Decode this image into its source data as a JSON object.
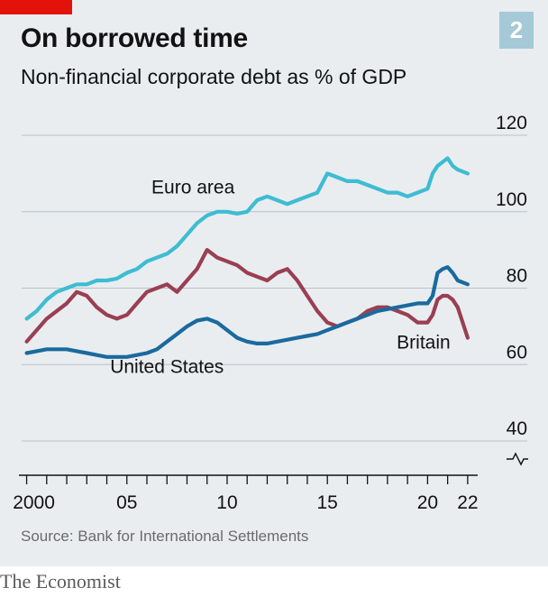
{
  "header": {
    "chart_number": "2",
    "title": "On borrowed time",
    "subtitle": "Non-financial corporate debt as % of GDP"
  },
  "footer": {
    "source": "Source: Bank for International Settlements",
    "brand": "The Economist"
  },
  "colors": {
    "panel": "#e9edf0",
    "euro_area": "#3ebcd2",
    "britain": "#9a3f52",
    "united_states": "#1a6a9e",
    "grid": "#b7c2c9",
    "accent_red": "#e3120b"
  },
  "chart_data": {
    "type": "line",
    "title": "On borrowed time",
    "subtitle": "Non-financial corporate debt as % of GDP",
    "xlabel": "",
    "ylabel": "",
    "xlim": [
      1999.75,
      2022.5
    ],
    "ylim": [
      40,
      120
    ],
    "y_ticks": [
      40,
      60,
      80,
      100,
      120
    ],
    "y_tick_labels": [
      "40",
      "60",
      "80",
      "100",
      "120"
    ],
    "y_axis_break": true,
    "x_ticks": [
      2000,
      2005,
      2010,
      2015,
      2020,
      2022
    ],
    "x_tick_labels": [
      "2000",
      "05",
      "10",
      "15",
      "20",
      "22"
    ],
    "x_minor_ticks": [
      2000,
      2001,
      2002,
      2003,
      2004,
      2005,
      2006,
      2007,
      2008,
      2009,
      2010,
      2011,
      2012,
      2013,
      2014,
      2015,
      2016,
      2017,
      2018,
      2019,
      2020,
      2021,
      2022
    ],
    "grid": true,
    "legend": "direct labels",
    "series": [
      {
        "name": "Euro area",
        "x": [
          2000.0,
          2000.5,
          2001.0,
          2001.5,
          2002.0,
          2002.5,
          2003.0,
          2003.5,
          2004.0,
          2004.5,
          2005.0,
          2005.5,
          2006.0,
          2006.5,
          2007.0,
          2007.5,
          2008.0,
          2008.5,
          2009.0,
          2009.5,
          2010.0,
          2010.5,
          2011.0,
          2011.5,
          2012.0,
          2012.5,
          2013.0,
          2013.5,
          2014.0,
          2014.5,
          2015.0,
          2015.5,
          2016.0,
          2016.5,
          2017.0,
          2017.5,
          2018.0,
          2018.5,
          2019.0,
          2019.5,
          2020.0,
          2020.25,
          2020.5,
          2020.75,
          2021.0,
          2021.25,
          2021.5,
          2022.0
        ],
        "values": [
          72,
          74,
          77,
          79,
          80,
          81,
          81,
          82,
          82,
          82.5,
          84,
          85,
          87,
          88,
          89,
          91,
          94,
          97,
          99,
          100,
          100,
          99.5,
          100,
          103,
          104,
          103,
          102,
          103,
          104,
          105,
          110,
          109,
          108,
          108,
          107,
          106,
          105,
          105,
          104,
          105,
          106,
          110,
          112,
          113,
          114,
          112,
          111,
          110
        ]
      },
      {
        "name": "Britain",
        "x": [
          2000.0,
          2000.5,
          2001.0,
          2001.5,
          2002.0,
          2002.5,
          2003.0,
          2003.5,
          2004.0,
          2004.5,
          2005.0,
          2005.5,
          2006.0,
          2006.5,
          2007.0,
          2007.5,
          2008.0,
          2008.5,
          2009.0,
          2009.5,
          2010.0,
          2010.5,
          2011.0,
          2011.5,
          2012.0,
          2012.5,
          2013.0,
          2013.5,
          2014.0,
          2014.5,
          2015.0,
          2015.5,
          2016.0,
          2016.5,
          2017.0,
          2017.5,
          2018.0,
          2018.5,
          2019.0,
          2019.5,
          2020.0,
          2020.25,
          2020.5,
          2020.75,
          2021.0,
          2021.25,
          2021.5,
          2022.0
        ],
        "values": [
          66,
          69,
          72,
          74,
          76,
          79,
          78,
          75,
          73,
          72,
          73,
          76,
          79,
          80,
          81,
          79,
          82,
          85,
          90,
          88,
          87,
          86,
          84,
          83,
          82,
          84,
          85,
          82,
          78,
          74,
          71,
          70,
          71,
          72,
          74,
          75,
          75,
          74,
          73,
          71,
          71,
          73,
          77,
          78,
          78,
          77,
          75,
          67
        ]
      },
      {
        "name": "United States",
        "x": [
          2000.0,
          2000.5,
          2001.0,
          2001.5,
          2002.0,
          2002.5,
          2003.0,
          2003.5,
          2004.0,
          2004.5,
          2005.0,
          2005.5,
          2006.0,
          2006.5,
          2007.0,
          2007.5,
          2008.0,
          2008.5,
          2009.0,
          2009.5,
          2010.0,
          2010.5,
          2011.0,
          2011.5,
          2012.0,
          2012.5,
          2013.0,
          2013.5,
          2014.0,
          2014.5,
          2015.0,
          2015.5,
          2016.0,
          2016.5,
          2017.0,
          2017.5,
          2018.0,
          2018.5,
          2019.0,
          2019.5,
          2020.0,
          2020.25,
          2020.5,
          2020.75,
          2021.0,
          2021.25,
          2021.5,
          2022.0
        ],
        "values": [
          63,
          63.5,
          64,
          64,
          64,
          63.5,
          63,
          62.5,
          62,
          62,
          62,
          62.5,
          63,
          64,
          66,
          68,
          70,
          71.5,
          72,
          71,
          69,
          67,
          66,
          65.5,
          65.5,
          66,
          66.5,
          67,
          67.5,
          68,
          69,
          70,
          71,
          72,
          73,
          74,
          74.5,
          75,
          75.5,
          76,
          76,
          78,
          84,
          85,
          85.5,
          84,
          82,
          81
        ]
      }
    ],
    "annotations": [
      {
        "text": "Euro area",
        "series": "Euro area",
        "x": 2008.3,
        "y": 104.8
      },
      {
        "text": "Britain",
        "series": "Britain",
        "x": 2019.8,
        "y": 64.2
      },
      {
        "text": "United States",
        "series": "United States",
        "x": 2007.0,
        "y": 57.8
      }
    ]
  }
}
